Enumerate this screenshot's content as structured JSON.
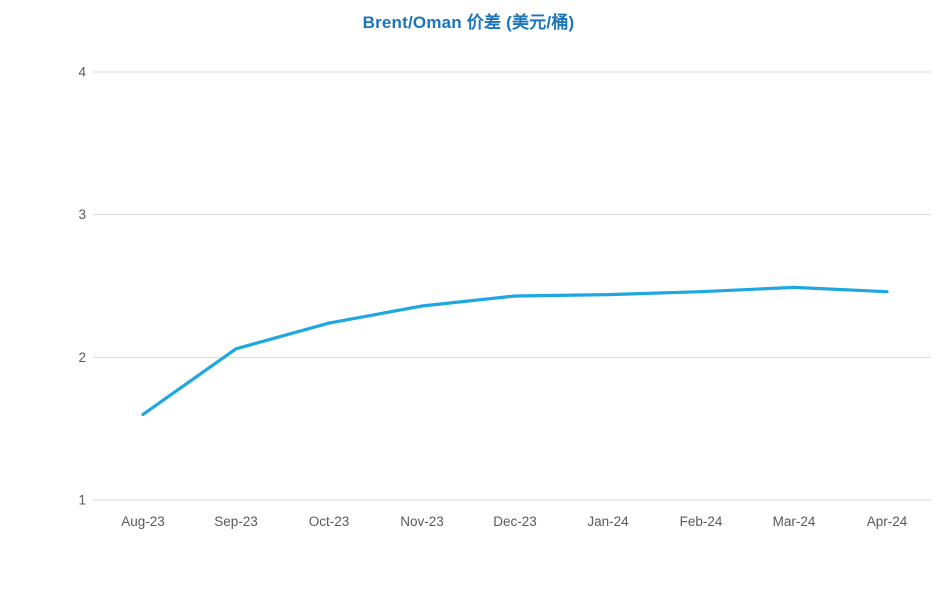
{
  "chart_data": {
    "type": "line",
    "title": "Brent/Oman 价差 (美元/桶)",
    "categories": [
      "Aug-23",
      "Sep-23",
      "Oct-23",
      "Nov-23",
      "Dec-23",
      "Jan-24",
      "Feb-24",
      "Mar-24",
      "Apr-24"
    ],
    "series": [
      {
        "name": "Brent/Oman 价差",
        "values": [
          1.6,
          2.06,
          2.24,
          2.36,
          2.43,
          2.44,
          2.46,
          2.49,
          2.46
        ]
      }
    ],
    "xlabel": "",
    "ylabel": "",
    "ylim": [
      1,
      4
    ],
    "yticks": [
      1,
      2,
      3,
      4
    ],
    "grid": "horizontal",
    "legend_position": "none",
    "colors": {
      "line": "#1EA7E1",
      "title": "#1B75BB",
      "grid": "#D9D9D9",
      "tick_label": "#595959",
      "background": "#FFFFFF"
    }
  }
}
